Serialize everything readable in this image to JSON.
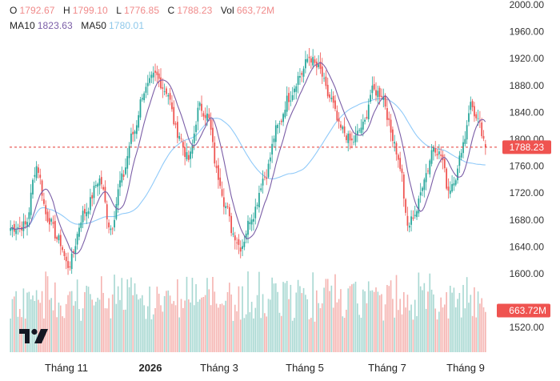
{
  "legend": {
    "o_label": "O",
    "o_value": "1792.67",
    "h_label": "H",
    "h_value": "1799.10",
    "l_label": "L",
    "l_value": "1776.85",
    "c_label": "C",
    "c_value": "1788.23",
    "vol_label": "Vol",
    "vol_value": "663,72M",
    "ma10_label": "MA10",
    "ma10_value": "1823.63",
    "ma50_label": "MA50",
    "ma50_value": "1780.01"
  },
  "price_badge": "1788.23",
  "volume_badge": "663.72M",
  "colors": {
    "up": "#26a69a",
    "down": "#ef5350",
    "up_volume": "#a8d8d2",
    "down_volume": "#f5b4b1",
    "ma10": "#7b5ea7",
    "ma50": "#90caf9",
    "price_line": "#e53935",
    "badge": "#ef5350"
  },
  "chart_data": {
    "type": "candlestick",
    "title": "",
    "y_axis": {
      "side": "right",
      "range": [
        1500,
        2000
      ],
      "ticks": [
        "2000.00",
        "1960.00",
        "1920.00",
        "1880.00",
        "1840.00",
        "1800.00",
        "1760.00",
        "1720.00",
        "1680.00",
        "1640.00",
        "1600.00",
        "1520.00"
      ]
    },
    "x_axis": {
      "ticks": [
        {
          "label": "Tháng 11",
          "bold": false
        },
        {
          "label": "2026",
          "bold": true
        },
        {
          "label": "Tháng 3",
          "bold": false
        },
        {
          "label": "Tháng 5",
          "bold": false
        },
        {
          "label": "Tháng 7",
          "bold": false
        },
        {
          "label": "Tháng 9",
          "bold": false
        }
      ]
    },
    "grid": false,
    "last_close": 1788.23,
    "anchors": [
      [
        0,
        1668
      ],
      [
        8,
        1672
      ],
      [
        14,
        1760
      ],
      [
        20,
        1683
      ],
      [
        26,
        1650
      ],
      [
        31,
        1612
      ],
      [
        40,
        1692
      ],
      [
        48,
        1740
      ],
      [
        54,
        1668
      ],
      [
        60,
        1742
      ],
      [
        66,
        1808
      ],
      [
        72,
        1872
      ],
      [
        78,
        1895
      ],
      [
        84,
        1872
      ],
      [
        90,
        1810
      ],
      [
        96,
        1770
      ],
      [
        102,
        1848
      ],
      [
        106,
        1835
      ],
      [
        112,
        1745
      ],
      [
        116,
        1700
      ],
      [
        120,
        1660
      ],
      [
        124,
        1640
      ],
      [
        130,
        1686
      ],
      [
        137,
        1745
      ],
      [
        144,
        1818
      ],
      [
        150,
        1862
      ],
      [
        156,
        1895
      ],
      [
        161,
        1922
      ],
      [
        166,
        1905
      ],
      [
        172,
        1862
      ],
      [
        178,
        1815
      ],
      [
        184,
        1796
      ],
      [
        190,
        1820
      ],
      [
        195,
        1872
      ],
      [
        200,
        1868
      ],
      [
        206,
        1805
      ],
      [
        210,
        1760
      ],
      [
        214,
        1670
      ],
      [
        218,
        1690
      ],
      [
        224,
        1750
      ],
      [
        228,
        1790
      ],
      [
        232,
        1776
      ],
      [
        236,
        1725
      ],
      [
        240,
        1745
      ],
      [
        244,
        1795
      ],
      [
        248,
        1852
      ],
      [
        252,
        1825
      ],
      [
        256,
        1788
      ]
    ],
    "moving_averages": [
      {
        "name": "MA10",
        "period": 10,
        "last": 1823.63
      },
      {
        "name": "MA50",
        "period": 50,
        "last": 1780.01
      }
    ]
  }
}
